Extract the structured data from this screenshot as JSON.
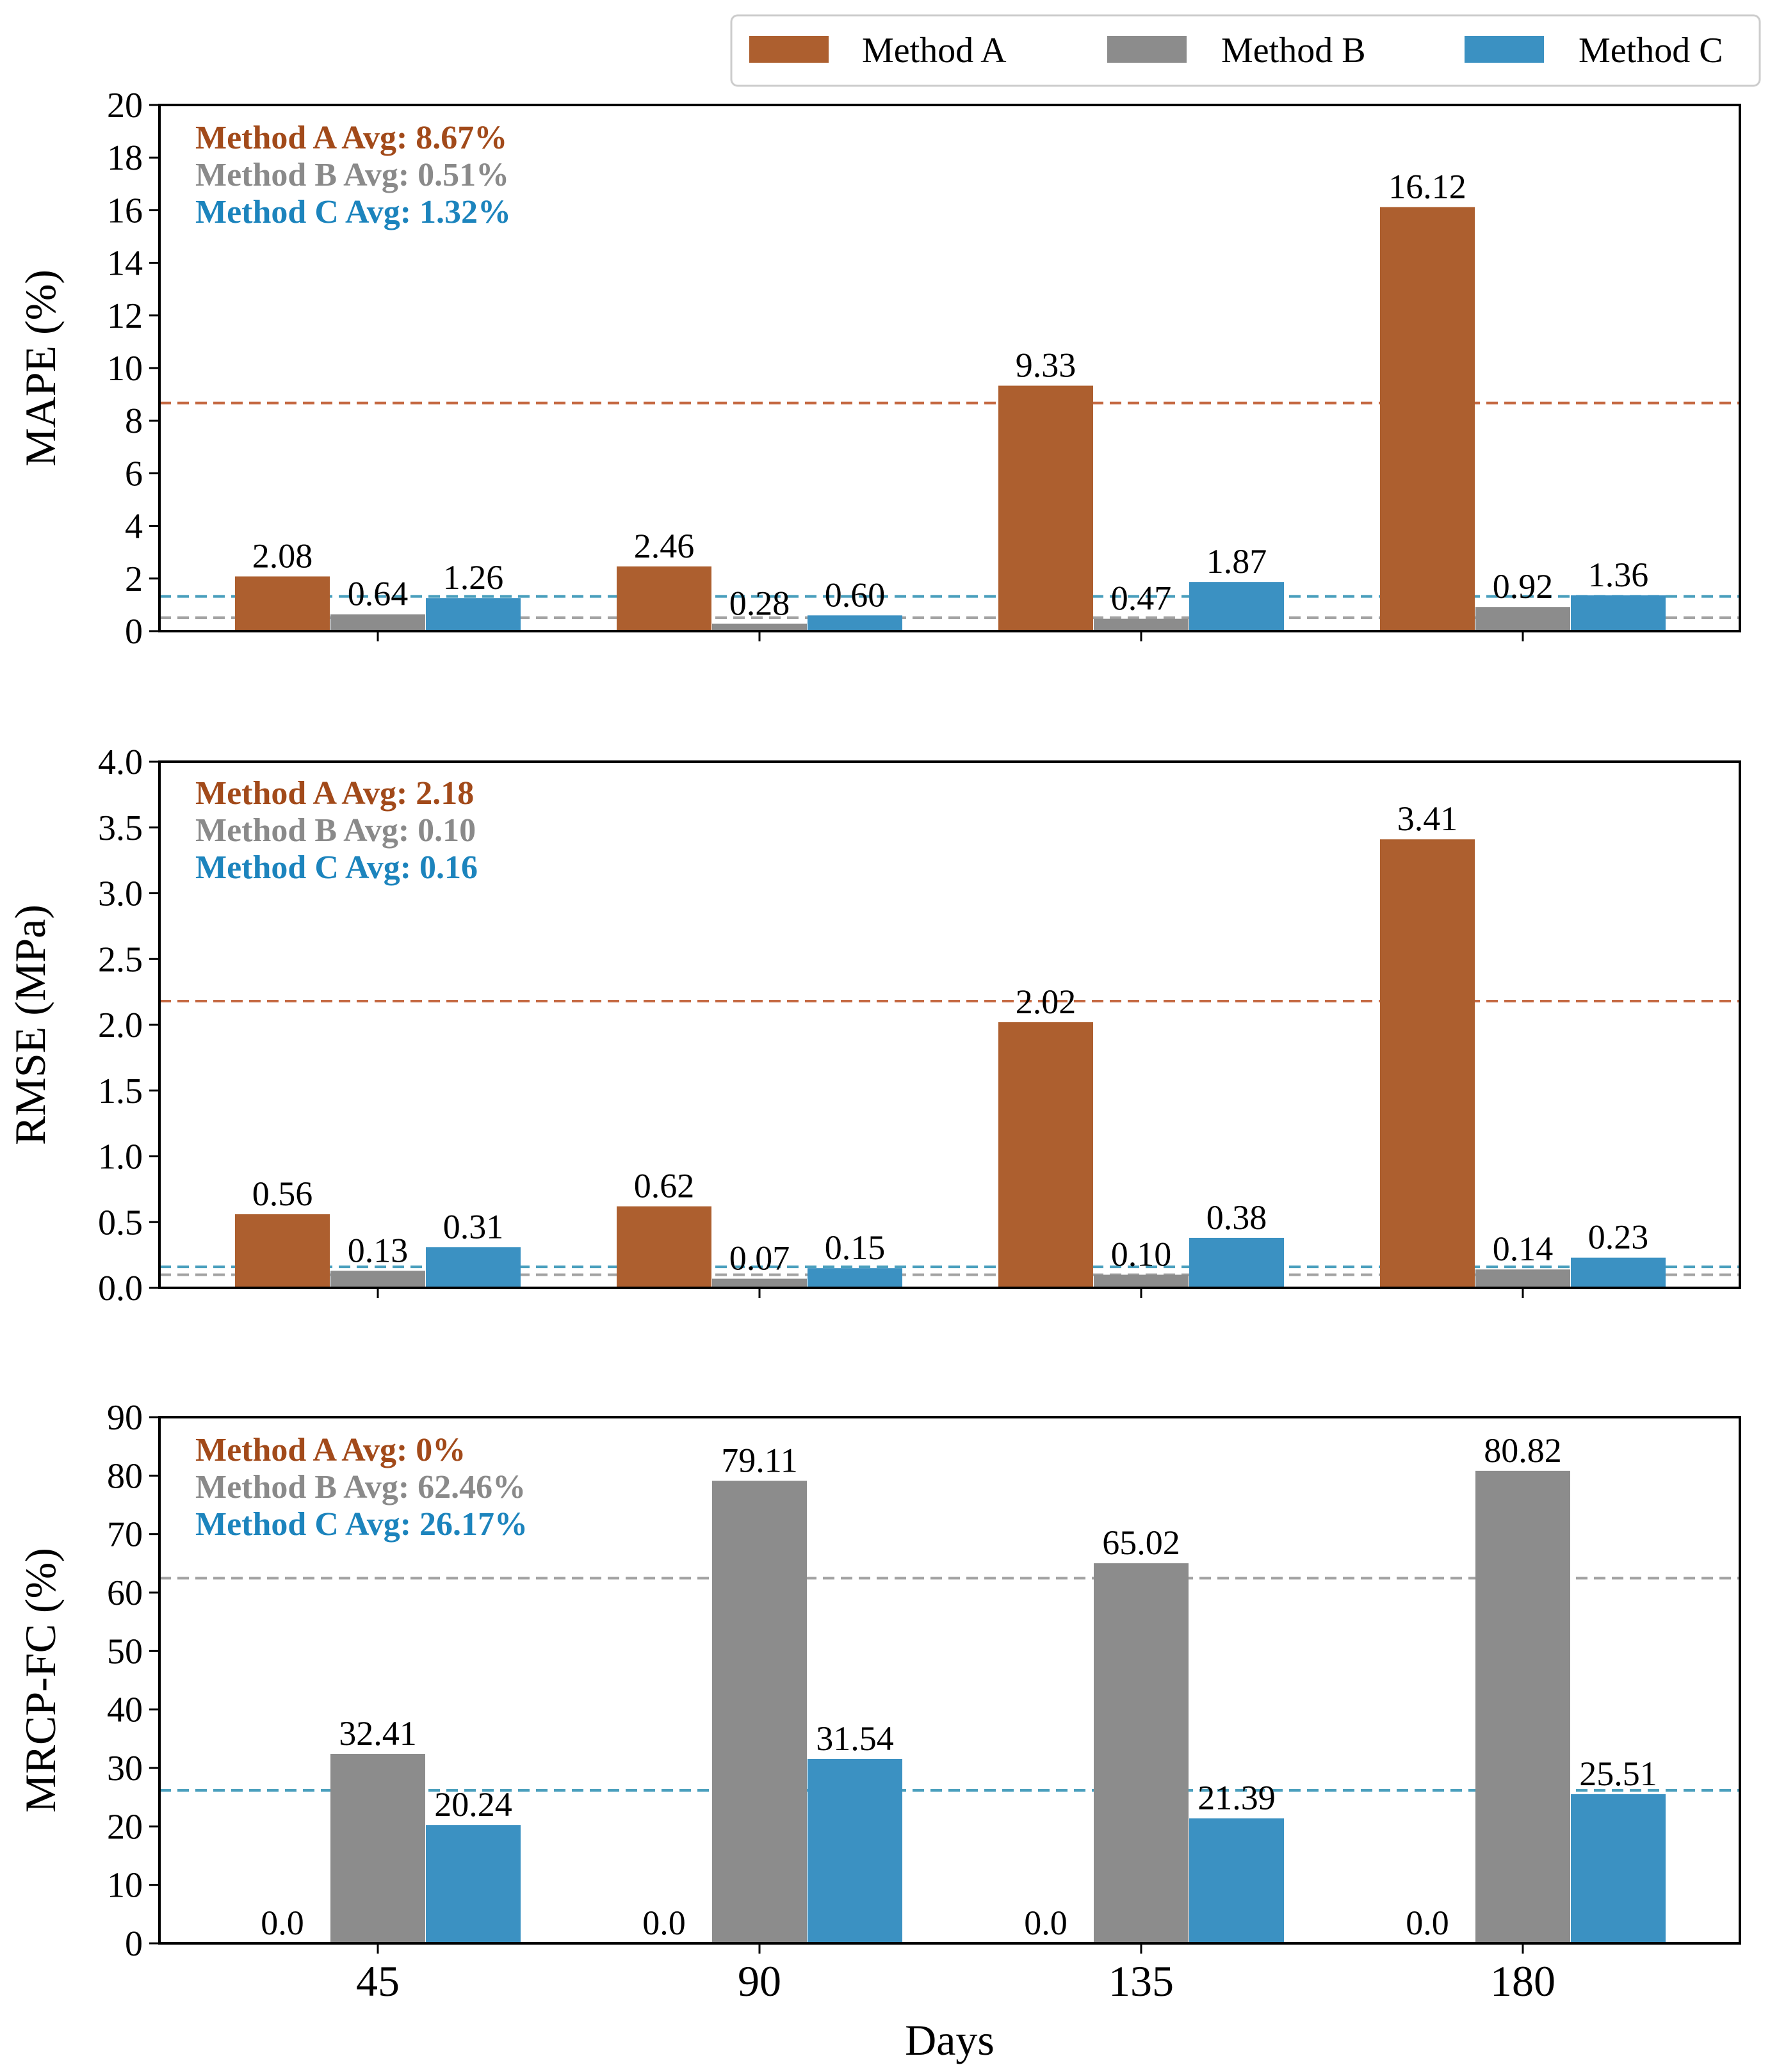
{
  "colors": {
    "method_a": "#ad5f2f",
    "method_b": "#8c8c8c",
    "method_c": "#3b91c2",
    "avg_line_a": "#c56a43",
    "avg_line_b": "#a3a3a3",
    "avg_line_c": "#4a9fbd",
    "text_a": "#a24a1a",
    "text_b": "#8a8a8a",
    "text_c": "#1c84bd"
  },
  "legend": {
    "entries": [
      "Method A",
      "Method B",
      "Method C"
    ],
    "placement": "top-right"
  },
  "chart_data": [
    {
      "type": "bar",
      "title": "",
      "xlabel": "",
      "ylabel": "MAPE (%)",
      "categories": [
        "45",
        "90",
        "135",
        "180"
      ],
      "ylim": [
        0,
        20
      ],
      "yticks": [
        "0",
        "2",
        "4",
        "6",
        "8",
        "10",
        "12",
        "14",
        "16",
        "18",
        "20"
      ],
      "series": [
        {
          "name": "Method A",
          "values": [
            2.08,
            2.46,
            9.33,
            16.12
          ],
          "labels": [
            "2.08",
            "2.46",
            "9.33",
            "16.12"
          ]
        },
        {
          "name": "Method B",
          "values": [
            0.64,
            0.28,
            0.47,
            0.92
          ],
          "labels": [
            "0.64",
            "0.28",
            "0.47",
            "0.92"
          ]
        },
        {
          "name": "Method C",
          "values": [
            1.26,
            0.6,
            1.87,
            1.36
          ],
          "labels": [
            "1.26",
            "0.60",
            "1.87",
            "1.36"
          ]
        }
      ],
      "averages": [
        8.67,
        0.51,
        1.32
      ],
      "annotations": [
        "Method A Avg: 8.67%",
        "Method B Avg: 0.51%",
        "Method C Avg: 1.32%"
      ],
      "show_xticklabels": false
    },
    {
      "type": "bar",
      "title": "",
      "xlabel": "",
      "ylabel": "RMSE (MPa)",
      "categories": [
        "45",
        "90",
        "135",
        "180"
      ],
      "ylim": [
        0,
        4.0
      ],
      "yticks": [
        "0.0",
        "0.5",
        "1.0",
        "1.5",
        "2.0",
        "2.5",
        "3.0",
        "3.5",
        "4.0"
      ],
      "series": [
        {
          "name": "Method A",
          "values": [
            0.56,
            0.62,
            2.02,
            3.41
          ],
          "labels": [
            "0.56",
            "0.62",
            "2.02",
            "3.41"
          ]
        },
        {
          "name": "Method B",
          "values": [
            0.13,
            0.07,
            0.1,
            0.14
          ],
          "labels": [
            "0.13",
            "0.07",
            "0.10",
            "0.14"
          ]
        },
        {
          "name": "Method C",
          "values": [
            0.31,
            0.15,
            0.38,
            0.23
          ],
          "labels": [
            "0.31",
            "0.15",
            "0.38",
            "0.23"
          ]
        }
      ],
      "averages": [
        2.18,
        0.1,
        0.16
      ],
      "annotations": [
        "Method A Avg: 2.18",
        "Method B Avg: 0.10",
        "Method C Avg: 0.16"
      ],
      "show_xticklabels": false
    },
    {
      "type": "bar",
      "title": "",
      "xlabel": "Days",
      "ylabel": "MRCP-FC (%)",
      "categories": [
        "45",
        "90",
        "135",
        "180"
      ],
      "ylim": [
        0,
        90
      ],
      "yticks": [
        "0",
        "10",
        "20",
        "30",
        "40",
        "50",
        "60",
        "70",
        "80",
        "90"
      ],
      "series": [
        {
          "name": "Method A",
          "values": [
            0.0,
            0.0,
            0.0,
            0.0
          ],
          "labels": [
            "0.0",
            "0.0",
            "0.0",
            "0.0"
          ]
        },
        {
          "name": "Method B",
          "values": [
            32.41,
            79.11,
            65.02,
            80.82
          ],
          "labels": [
            "32.41",
            "79.11",
            "65.02",
            "80.82"
          ]
        },
        {
          "name": "Method C",
          "values": [
            20.24,
            31.54,
            21.39,
            25.51
          ],
          "labels": [
            "20.24",
            "31.54",
            "21.39",
            "25.51"
          ]
        }
      ],
      "averages": [
        0,
        62.46,
        26.17
      ],
      "annotations": [
        "Method A Avg: 0%",
        "Method B Avg: 62.46%",
        "Method C Avg: 26.17%"
      ],
      "show_xticklabels": true
    }
  ]
}
